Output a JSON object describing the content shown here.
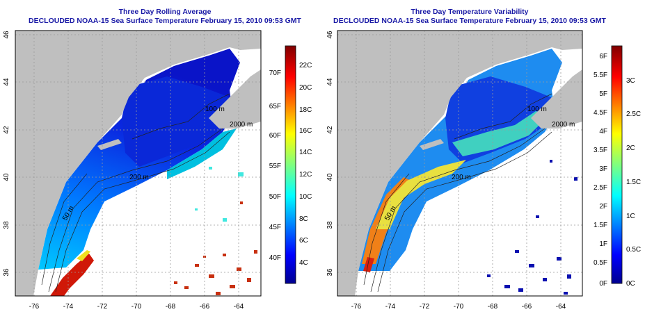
{
  "panels": [
    {
      "title_line1": "Three Day Rolling Average",
      "title_line2": "DECLOUDED NOAA-15 Sea Surface Temperature February 15, 2010 09:53 GMT",
      "x_ticks": [
        "-76",
        "-74",
        "-72",
        "-70",
        "-68",
        "-66",
        "-64"
      ],
      "y_ticks": [
        "36",
        "38",
        "40",
        "42",
        "44",
        "46"
      ],
      "contours": [
        "200 m",
        "2000 m",
        "100 m",
        "50 m"
      ],
      "colorbar": {
        "scheme": "jet",
        "right_ticks": [
          "22C",
          "20C",
          "18C",
          "16C",
          "14C",
          "12C",
          "10C",
          "8C",
          "6C",
          "4C"
        ],
        "left_ticks": [
          "70F",
          "65F",
          "60F",
          "55F",
          "50F",
          "45F",
          "40F"
        ]
      }
    },
    {
      "title_line1": "Three Day Temperature Variability",
      "title_line2": "DECLOUDED NOAA-15 Sea Surface Temperature February 15, 2010 09:53 GMT",
      "x_ticks": [
        "-76",
        "-74",
        "-72",
        "-70",
        "-68",
        "-66",
        "-64"
      ],
      "y_ticks": [
        "36",
        "38",
        "40",
        "42",
        "44",
        "46"
      ],
      "contours": [
        "200 m",
        "2000 m",
        "100 m",
        "50 m"
      ],
      "colorbar": {
        "scheme": "jet",
        "right_ticks": [
          "3C",
          "2.5C",
          "2C",
          "1.5C",
          "1C",
          "0.5C",
          "0C"
        ],
        "left_ticks": [
          "6F",
          "5.5F",
          "5F",
          "4.5F",
          "4F",
          "3.5F",
          "3F",
          "2.5F",
          "2F",
          "1.5F",
          "1F",
          "0.5F",
          "0F"
        ]
      }
    }
  ],
  "colors": {
    "title": "#1a1aa6",
    "land": "#bfbfbf",
    "jet_low": "#00008f",
    "jet_mid": "#7fff7f",
    "jet_high": "#800000"
  }
}
